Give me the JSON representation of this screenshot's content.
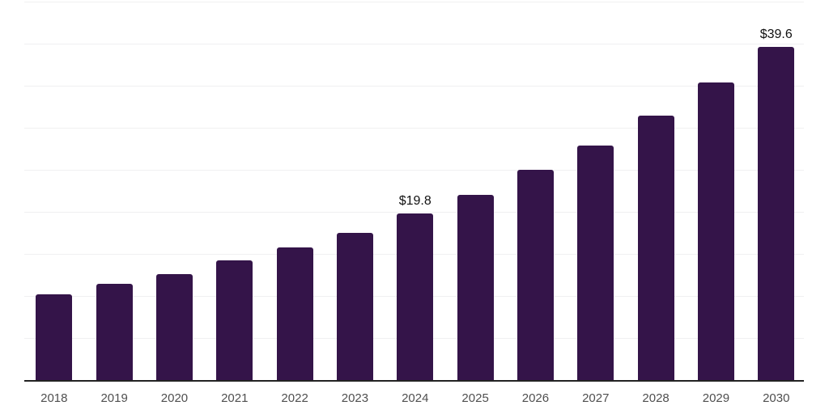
{
  "chart_data": {
    "type": "bar",
    "title": "",
    "xlabel": "",
    "ylabel": "",
    "categories": [
      "2018",
      "2019",
      "2020",
      "2021",
      "2022",
      "2023",
      "2024",
      "2025",
      "2026",
      "2027",
      "2028",
      "2029",
      "2030"
    ],
    "values": [
      10.2,
      11.4,
      12.6,
      14.2,
      15.8,
      17.5,
      19.8,
      22.0,
      25.0,
      27.9,
      31.4,
      35.4,
      39.6
    ],
    "data_labels": [
      {
        "category": "2024",
        "text": "$19.8"
      },
      {
        "category": "2030",
        "text": "$39.6"
      }
    ],
    "ylim": [
      0,
      45
    ],
    "grid_step": 5,
    "grid": true,
    "legend_position": "none",
    "colors": {
      "bar": "#341449",
      "axis": "#222222",
      "gridline": "#f0f0f1",
      "tick_label": "#4f4f4f",
      "data_label": "#111111"
    }
  }
}
